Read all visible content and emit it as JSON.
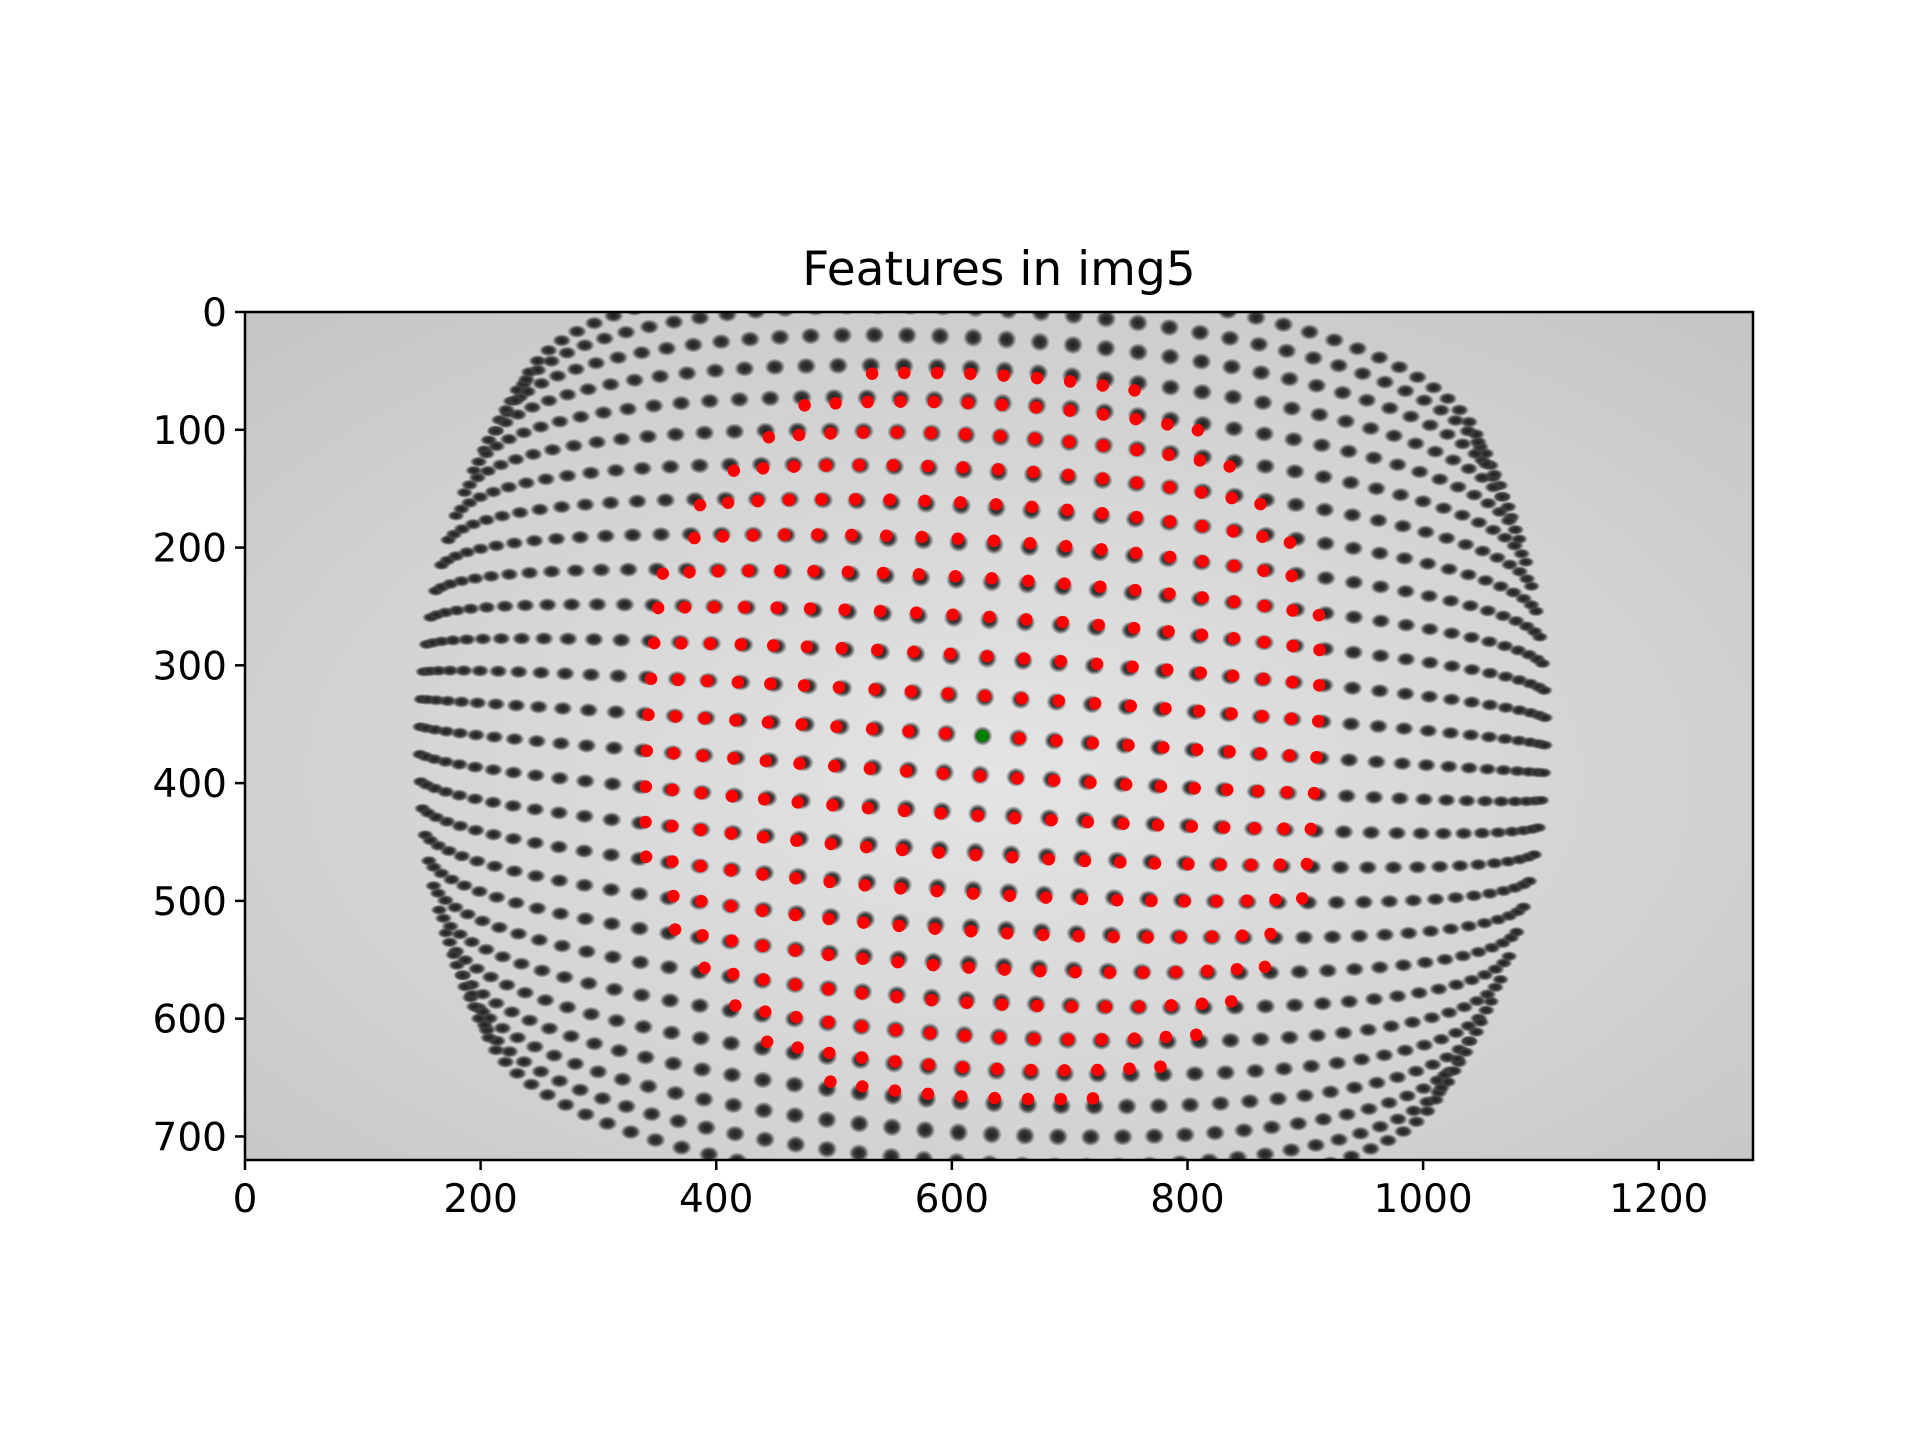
{
  "chart_data": {
    "type": "scatter",
    "title": "Features in img5",
    "xlabel": "",
    "ylabel": "",
    "xlim": [
      0,
      1280
    ],
    "ylim": [
      720,
      0
    ],
    "x_ticks": [
      "0",
      "200",
      "400",
      "600",
      "800",
      "1000",
      "1200"
    ],
    "y_ticks": [
      "0",
      "100",
      "200",
      "300",
      "400",
      "500",
      "600",
      "700"
    ],
    "grid": false,
    "legend": "none",
    "background": "grayscale image of a warped grid of dark dots (fisheye distortion), axes shown in image coordinates with y increasing downward",
    "colors": {
      "features": "#ff0000",
      "reference": "#008000",
      "image_dot": "#3a3a3a",
      "image_bg": "#dcdcdc"
    },
    "series": [
      {
        "color": "#ff0000",
        "grid_model": {
          "rows": 21,
          "cols": 21,
          "row_range": [
            -10,
            10
          ],
          "col_range": [
            -10,
            10
          ],
          "center": [
            626,
            360
          ],
          "col_step": [
            31.5,
            2.0
          ],
          "row_step": [
            -2.0,
            34.0
          ],
          "edge_shrink": 0.001
        },
        "values_note": "red detected feature points on the distorted dot grid"
      },
      {
        "color": "#008000",
        "x": [
          626
        ],
        "y": [
          360
        ]
      }
    ]
  }
}
